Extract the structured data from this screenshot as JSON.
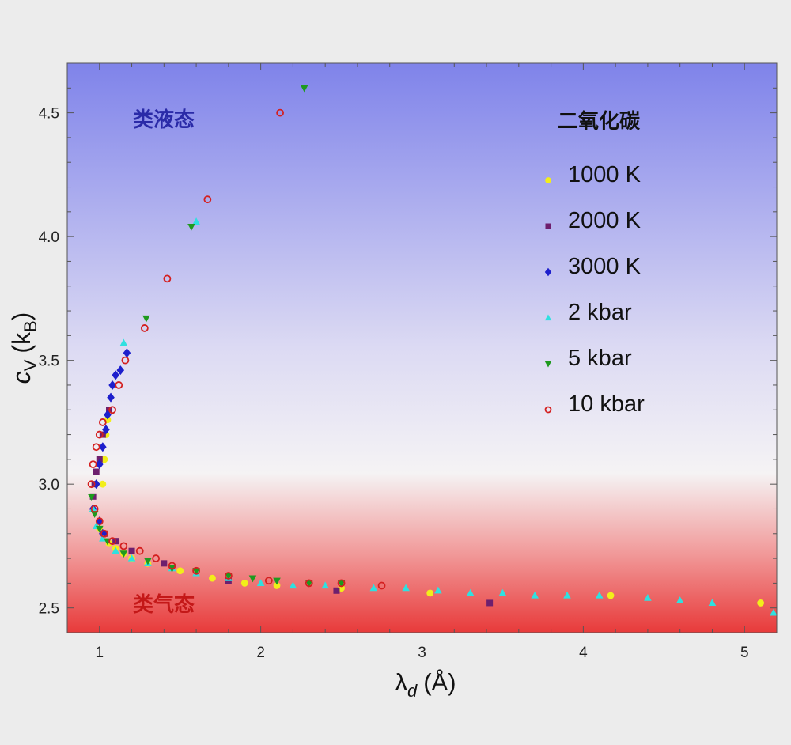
{
  "colors": {
    "liquid_label": "#2a2aa8",
    "gas_label": "#c41818",
    "bg_top": "#7f83ea",
    "bg_mid": "#f5f3f4",
    "bg_bottom": "#e83a3a",
    "series_1000K": "#f2ee1a",
    "series_2000K": "#6e1f6e",
    "series_3000K": "#1d1fcc",
    "series_2kbar": "#2fe0e0",
    "series_5kbar": "#1e9a1e",
    "series_10kbar": "#d42020"
  },
  "chart_data": {
    "type": "scatter",
    "xlabel": "λ",
    "xlabel_sub": "d",
    "xlabel_unit": "(Å)",
    "ylabel": "c",
    "ylabel_sub": "V",
    "ylabel_unit_open": "(k",
    "ylabel_unit_sub": "B",
    "ylabel_unit_close": ")",
    "xlim": [
      0.8,
      5.2
    ],
    "ylim": [
      2.4,
      4.7
    ],
    "x_ticks": [
      1,
      2,
      3,
      4,
      5
    ],
    "y_ticks": [
      2.5,
      3.0,
      3.5,
      4.0,
      4.5
    ],
    "x_tick_labels": [
      "1",
      "2",
      "3",
      "4",
      "5"
    ],
    "y_tick_labels": [
      "2.5",
      "3.0",
      "3.5",
      "4.0",
      "4.5"
    ],
    "region_liquid": "类液态",
    "region_gas": "类气态",
    "legend_title": "二氧化碳",
    "legend_position": "top-right",
    "series": [
      {
        "name": "1000 K",
        "marker": "circle",
        "color": "#f2ee1a",
        "points": [
          [
            1.0,
            2.82
          ],
          [
            1.02,
            3.0
          ],
          [
            1.03,
            3.1
          ],
          [
            1.04,
            3.2
          ],
          [
            1.05,
            3.26
          ],
          [
            1.06,
            2.76
          ],
          [
            1.1,
            2.74
          ],
          [
            1.15,
            2.72
          ],
          [
            1.2,
            2.7
          ],
          [
            1.3,
            2.68
          ],
          [
            1.5,
            2.65
          ],
          [
            1.7,
            2.62
          ],
          [
            1.9,
            2.6
          ],
          [
            2.1,
            2.59
          ],
          [
            2.5,
            2.58
          ],
          [
            3.05,
            2.56
          ],
          [
            4.17,
            2.55
          ],
          [
            5.1,
            2.52
          ]
        ]
      },
      {
        "name": "2000 K",
        "marker": "square",
        "color": "#6e1f6e",
        "points": [
          [
            0.96,
            2.95
          ],
          [
            0.97,
            3.0
          ],
          [
            0.98,
            3.05
          ],
          [
            1.0,
            3.1
          ],
          [
            1.02,
            3.2
          ],
          [
            1.03,
            2.8
          ],
          [
            1.06,
            3.3
          ],
          [
            1.1,
            2.77
          ],
          [
            1.2,
            2.73
          ],
          [
            1.4,
            2.68
          ],
          [
            1.8,
            2.61
          ],
          [
            2.47,
            2.57
          ],
          [
            3.42,
            2.52
          ]
        ]
      },
      {
        "name": "3000 K",
        "marker": "diamond",
        "color": "#1d1fcc",
        "points": [
          [
            0.96,
            2.9
          ],
          [
            0.98,
            3.0
          ],
          [
            1.0,
            3.08
          ],
          [
            1.02,
            3.15
          ],
          [
            1.04,
            3.22
          ],
          [
            1.05,
            3.28
          ],
          [
            1.07,
            3.35
          ],
          [
            1.08,
            3.4
          ],
          [
            1.1,
            3.44
          ],
          [
            1.13,
            3.46
          ],
          [
            1.17,
            3.53
          ],
          [
            1.0,
            2.85
          ],
          [
            1.02,
            2.8
          ]
        ]
      },
      {
        "name": "2 kbar",
        "marker": "triangle-up",
        "color": "#2fe0e0",
        "points": [
          [
            0.96,
            2.9
          ],
          [
            0.98,
            2.83
          ],
          [
            1.02,
            2.78
          ],
          [
            1.1,
            2.73
          ],
          [
            1.2,
            2.7
          ],
          [
            1.3,
            2.68
          ],
          [
            1.45,
            2.66
          ],
          [
            1.6,
            2.64
          ],
          [
            1.8,
            2.62
          ],
          [
            2.0,
            2.6
          ],
          [
            2.2,
            2.59
          ],
          [
            2.4,
            2.59
          ],
          [
            2.7,
            2.58
          ],
          [
            2.9,
            2.58
          ],
          [
            3.1,
            2.57
          ],
          [
            3.3,
            2.56
          ],
          [
            3.5,
            2.56
          ],
          [
            3.7,
            2.55
          ],
          [
            3.9,
            2.55
          ],
          [
            4.1,
            2.55
          ],
          [
            4.4,
            2.54
          ],
          [
            4.6,
            2.53
          ],
          [
            4.8,
            2.52
          ],
          [
            5.18,
            2.48
          ],
          [
            1.15,
            3.57
          ],
          [
            1.6,
            4.06
          ]
        ]
      },
      {
        "name": "5 kbar",
        "marker": "triangle-down",
        "color": "#1e9a1e",
        "points": [
          [
            0.95,
            2.95
          ],
          [
            0.97,
            2.88
          ],
          [
            1.0,
            2.82
          ],
          [
            1.05,
            2.77
          ],
          [
            1.15,
            2.72
          ],
          [
            1.3,
            2.69
          ],
          [
            1.45,
            2.66
          ],
          [
            1.6,
            2.65
          ],
          [
            1.8,
            2.63
          ],
          [
            1.95,
            2.62
          ],
          [
            2.1,
            2.61
          ],
          [
            2.3,
            2.6
          ],
          [
            2.5,
            2.6
          ],
          [
            1.29,
            3.67
          ],
          [
            1.57,
            4.04
          ],
          [
            2.27,
            4.6
          ]
        ]
      },
      {
        "name": "10 kbar",
        "marker": "ring",
        "color": "#d42020",
        "points": [
          [
            0.95,
            3.0
          ],
          [
            0.96,
            3.08
          ],
          [
            0.98,
            3.15
          ],
          [
            1.0,
            3.2
          ],
          [
            1.02,
            3.25
          ],
          [
            0.97,
            2.9
          ],
          [
            1.0,
            2.85
          ],
          [
            1.03,
            2.8
          ],
          [
            1.08,
            2.77
          ],
          [
            1.15,
            2.75
          ],
          [
            1.25,
            2.73
          ],
          [
            1.35,
            2.7
          ],
          [
            1.45,
            2.67
          ],
          [
            1.6,
            2.65
          ],
          [
            1.8,
            2.63
          ],
          [
            2.05,
            2.61
          ],
          [
            2.3,
            2.6
          ],
          [
            2.5,
            2.6
          ],
          [
            2.75,
            2.59
          ],
          [
            1.08,
            3.3
          ],
          [
            1.12,
            3.4
          ],
          [
            1.16,
            3.5
          ],
          [
            1.28,
            3.63
          ],
          [
            1.42,
            3.83
          ],
          [
            1.67,
            4.15
          ],
          [
            2.12,
            4.5
          ]
        ]
      }
    ]
  }
}
